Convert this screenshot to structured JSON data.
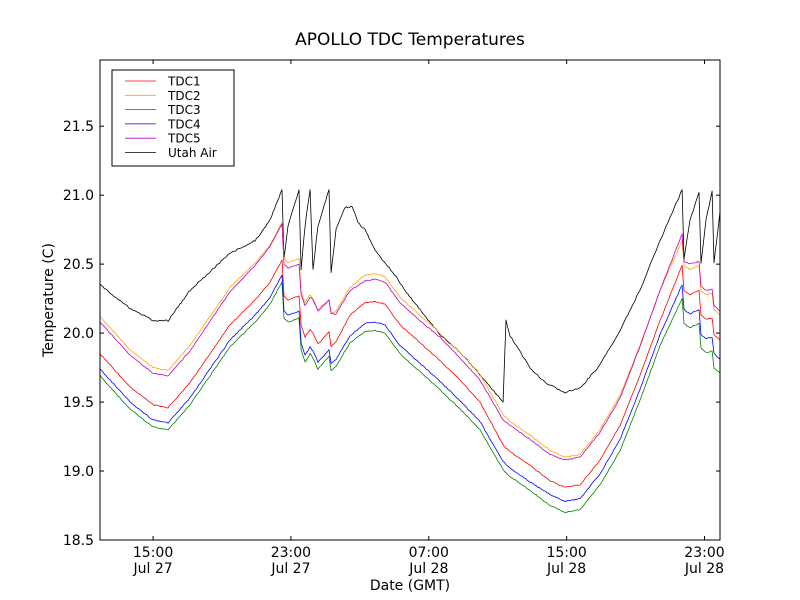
{
  "chart_data": {
    "type": "line",
    "title": "APOLLO TDC Temperatures",
    "xlabel": "Date (GMT)",
    "ylabel": "Temperature (C)",
    "x_units": "hours since Jul 27 00:00 GMT",
    "xlim": [
      11.92,
      47.9
    ],
    "ylim": [
      18.5,
      21.98
    ],
    "grid": false,
    "legend_position": "top-left",
    "yticks": [
      18.5,
      19.0,
      19.5,
      20.0,
      20.5,
      21.0,
      21.5
    ],
    "ytick_labels": [
      "18.5",
      "19.0",
      "19.5",
      "20.0",
      "20.5",
      "21.0",
      "21.5"
    ],
    "xticks": [
      15,
      23,
      31,
      39,
      47
    ],
    "xtick_labels": [
      {
        "time": "15:00",
        "date": "Jul 27"
      },
      {
        "time": "23:00",
        "date": "Jul 27"
      },
      {
        "time": "07:00",
        "date": "Jul 28"
      },
      {
        "time": "15:00",
        "date": "Jul 28"
      },
      {
        "time": "23:00",
        "date": "Jul 28"
      }
    ],
    "tdc_x": [
      11.92,
      13.66,
      15.0,
      15.87,
      17.14,
      19.46,
      20.92,
      21.79,
      22.48,
      22.6,
      22.83,
      23.47,
      23.59,
      23.82,
      24.11,
      24.28,
      24.57,
      25.21,
      25.33,
      25.62,
      26.43,
      27.3,
      27.88,
      28.46,
      29.33,
      30.49,
      31.65,
      32.81,
      33.97,
      35.31,
      35.72,
      36.88,
      38.04,
      38.91,
      39.78,
      40.94,
      42.1,
      43.25,
      44.42,
      45.7,
      45.81,
      46.16,
      46.68,
      46.8,
      47.09,
      47.44,
      47.55,
      47.9
    ],
    "series": [
      {
        "name": "TDC1",
        "color": "#ff0000",
        "values": [
          19.85,
          19.61,
          19.48,
          19.46,
          19.64,
          20.06,
          20.24,
          20.37,
          20.53,
          20.27,
          20.24,
          20.27,
          20.06,
          19.97,
          20.03,
          20.0,
          19.92,
          20.01,
          19.9,
          19.94,
          20.13,
          20.22,
          20.23,
          20.21,
          20.06,
          19.93,
          19.8,
          19.66,
          19.5,
          19.19,
          19.14,
          19.04,
          18.93,
          18.88,
          18.9,
          19.08,
          19.33,
          19.69,
          20.09,
          20.49,
          20.31,
          20.28,
          20.31,
          20.13,
          20.1,
          20.11,
          19.99,
          19.95
        ]
      },
      {
        "name": "TDC2",
        "color": "#ffa500",
        "values": [
          20.12,
          19.88,
          19.75,
          19.73,
          19.91,
          20.33,
          20.51,
          20.64,
          20.8,
          20.54,
          20.51,
          20.54,
          20.31,
          20.22,
          20.28,
          20.25,
          20.17,
          20.24,
          20.14,
          20.16,
          20.33,
          20.42,
          20.43,
          20.41,
          20.26,
          20.13,
          20.0,
          19.86,
          19.7,
          19.41,
          19.36,
          19.26,
          19.15,
          19.1,
          19.12,
          19.3,
          19.55,
          19.91,
          20.31,
          20.67,
          20.49,
          20.46,
          20.49,
          20.31,
          20.28,
          20.29,
          20.17,
          20.13
        ]
      },
      {
        "name": "TDC3",
        "color": "#008000",
        "values": [
          19.69,
          19.45,
          19.32,
          19.3,
          19.48,
          19.9,
          20.08,
          20.21,
          20.37,
          20.11,
          20.08,
          20.11,
          19.88,
          19.79,
          19.85,
          19.82,
          19.74,
          19.83,
          19.73,
          19.76,
          19.93,
          20.01,
          20.02,
          20.0,
          19.85,
          19.72,
          19.59,
          19.45,
          19.3,
          19.01,
          18.96,
          18.86,
          18.75,
          18.7,
          18.72,
          18.9,
          19.15,
          19.51,
          19.91,
          20.25,
          20.07,
          20.04,
          20.07,
          19.89,
          19.86,
          19.87,
          19.75,
          19.71
        ]
      },
      {
        "name": "TDC4",
        "color": "#0000ff",
        "values": [
          19.74,
          19.5,
          19.37,
          19.35,
          19.53,
          19.95,
          20.13,
          20.26,
          20.42,
          20.16,
          20.13,
          20.16,
          19.93,
          19.84,
          19.9,
          19.87,
          19.79,
          19.88,
          19.78,
          19.81,
          19.98,
          20.07,
          20.08,
          20.06,
          19.91,
          19.78,
          19.65,
          19.51,
          19.36,
          19.07,
          19.02,
          18.92,
          18.83,
          18.78,
          18.8,
          18.98,
          19.23,
          19.59,
          19.99,
          20.35,
          20.17,
          20.14,
          20.17,
          19.99,
          19.96,
          19.97,
          19.85,
          19.81
        ]
      },
      {
        "name": "TDC5",
        "color": "#bf00bf",
        "values": [
          20.08,
          19.84,
          19.71,
          19.69,
          19.87,
          20.3,
          20.49,
          20.63,
          20.79,
          20.5,
          20.47,
          20.5,
          20.28,
          20.2,
          20.26,
          20.24,
          20.16,
          20.24,
          20.14,
          20.14,
          20.31,
          20.38,
          20.39,
          20.37,
          20.22,
          20.09,
          19.97,
          19.82,
          19.66,
          19.37,
          19.33,
          19.23,
          19.12,
          19.08,
          19.1,
          19.28,
          19.53,
          19.9,
          20.31,
          20.72,
          20.52,
          20.5,
          20.52,
          20.34,
          20.31,
          20.32,
          20.2,
          20.16
        ]
      },
      {
        "name": "Utah Air",
        "color": "#000000",
        "x": [
          11.92,
          13.66,
          15.0,
          15.87,
          17.14,
          19.46,
          20.92,
          21.79,
          22.48,
          22.6,
          22.83,
          23.47,
          23.59,
          23.82,
          24.11,
          24.28,
          24.57,
          25.21,
          25.33,
          25.62,
          26.14,
          26.55,
          26.89,
          27.3,
          27.88,
          28.46,
          29.04,
          29.62,
          30.49,
          31.65,
          32.81,
          33.97,
          35.31,
          35.48,
          35.72,
          36.88,
          37.75,
          38.91,
          39.78,
          40.94,
          42.1,
          43.25,
          44.42,
          45.7,
          45.81,
          46.16,
          46.68,
          46.8,
          47.09,
          47.44,
          47.55,
          47.9
        ],
        "values": [
          20.35,
          20.18,
          20.09,
          20.09,
          20.31,
          20.58,
          20.67,
          20.82,
          21.04,
          20.54,
          20.78,
          21.04,
          20.46,
          20.78,
          21.04,
          20.46,
          20.78,
          21.04,
          20.44,
          20.75,
          20.91,
          20.92,
          20.8,
          20.75,
          20.6,
          20.51,
          20.42,
          20.31,
          20.17,
          19.99,
          19.86,
          19.7,
          19.5,
          20.09,
          19.98,
          19.75,
          19.64,
          19.57,
          19.6,
          19.77,
          20.02,
          20.31,
          20.67,
          21.04,
          20.54,
          20.82,
          21.02,
          20.51,
          20.82,
          21.03,
          20.51,
          20.88
        ]
      }
    ]
  }
}
